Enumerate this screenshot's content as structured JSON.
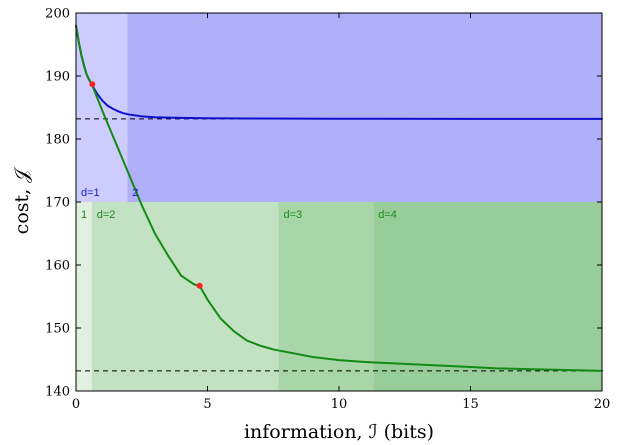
{
  "chart_data": {
    "type": "line",
    "xlabel": "information, ℐ (bits)",
    "ylabel": "cost, 𝒥",
    "xlim": [
      0,
      20
    ],
    "ylim": [
      140,
      200
    ],
    "x_ticks": [
      0,
      5,
      10,
      15,
      20
    ],
    "y_ticks": [
      140,
      150,
      160,
      170,
      180,
      190,
      200
    ],
    "x_tick_labels": [
      "0",
      "5",
      "10",
      "15",
      "20"
    ],
    "y_tick_labels": [
      "140",
      "150",
      "160",
      "170",
      "180",
      "190",
      "200"
    ],
    "grid": false,
    "regions": [
      {
        "label": "d=1",
        "x": [
          0,
          1.95
        ],
        "y": [
          170,
          200
        ],
        "color": "#ccccff",
        "label_color": "#1a1acc"
      },
      {
        "label": "2",
        "x": [
          1.95,
          20
        ],
        "y": [
          170,
          200
        ],
        "color": "#b0b0fa",
        "label_color": "#1a1acc"
      },
      {
        "label": "1",
        "x": [
          0,
          0.6
        ],
        "y": [
          140,
          170
        ],
        "color": "#e1f0e1",
        "label_color": "#1f8a1f"
      },
      {
        "label": "d=2",
        "x": [
          0.6,
          7.7
        ],
        "y": [
          140,
          170
        ],
        "color": "#c3e1c3",
        "label_color": "#1f8a1f"
      },
      {
        "label": "d=3",
        "x": [
          7.7,
          11.3
        ],
        "y": [
          140,
          170
        ],
        "color": "#a9d6a9",
        "label_color": "#1f8a1f"
      },
      {
        "label": "d=4",
        "x": [
          11.3,
          20
        ],
        "y": [
          140,
          170
        ],
        "color": "#98cc98",
        "label_color": "#1f8a1f"
      }
    ],
    "reference_lines": [
      {
        "y": 183.2,
        "style": "dashed",
        "color": "#000000"
      },
      {
        "y": 143.2,
        "style": "dashed",
        "color": "#000000"
      }
    ],
    "series": [
      {
        "color": "#1010cc",
        "x": [
          0,
          0.1,
          0.2,
          0.3,
          0.4,
          0.5,
          0.6,
          0.7,
          0.8,
          1.0,
          1.2,
          1.4,
          1.6,
          1.8,
          2.0,
          2.5,
          3.0,
          4.0,
          5.0,
          7.0,
          10.0,
          15.0,
          20.0
        ],
        "values": [
          198.0,
          195.5,
          193.4,
          191.7,
          190.3,
          189.4,
          188.7,
          187.9,
          187.2,
          186.1,
          185.3,
          184.8,
          184.4,
          184.1,
          183.9,
          183.6,
          183.45,
          183.35,
          183.3,
          183.25,
          183.22,
          183.2,
          183.2
        ]
      },
      {
        "color": "#138a13",
        "x": [
          0,
          0.1,
          0.2,
          0.3,
          0.4,
          0.5,
          0.6,
          1.0,
          1.5,
          2.0,
          2.5,
          3.0,
          3.5,
          4.0,
          4.5,
          4.7,
          5.0,
          5.5,
          6.0,
          6.5,
          7.0,
          7.5,
          8.0,
          9.0,
          10.0,
          11.0,
          12.0,
          13.0,
          14.0,
          15.0,
          16.0,
          17.0,
          18.0,
          19.0,
          20.0
        ],
        "values": [
          198.0,
          195.5,
          193.4,
          191.7,
          190.3,
          189.4,
          188.7,
          184.5,
          179.5,
          174.5,
          169.5,
          165.0,
          161.5,
          158.3,
          156.9,
          156.7,
          154.5,
          151.5,
          149.5,
          148.0,
          147.2,
          146.6,
          146.2,
          145.4,
          144.9,
          144.6,
          144.4,
          144.2,
          144.0,
          143.8,
          143.6,
          143.5,
          143.4,
          143.3,
          143.2
        ]
      }
    ],
    "markers": [
      {
        "x": 0.62,
        "y": 188.7,
        "color": "#ff2020"
      },
      {
        "x": 4.7,
        "y": 156.7,
        "color": "#ff2020"
      }
    ]
  }
}
